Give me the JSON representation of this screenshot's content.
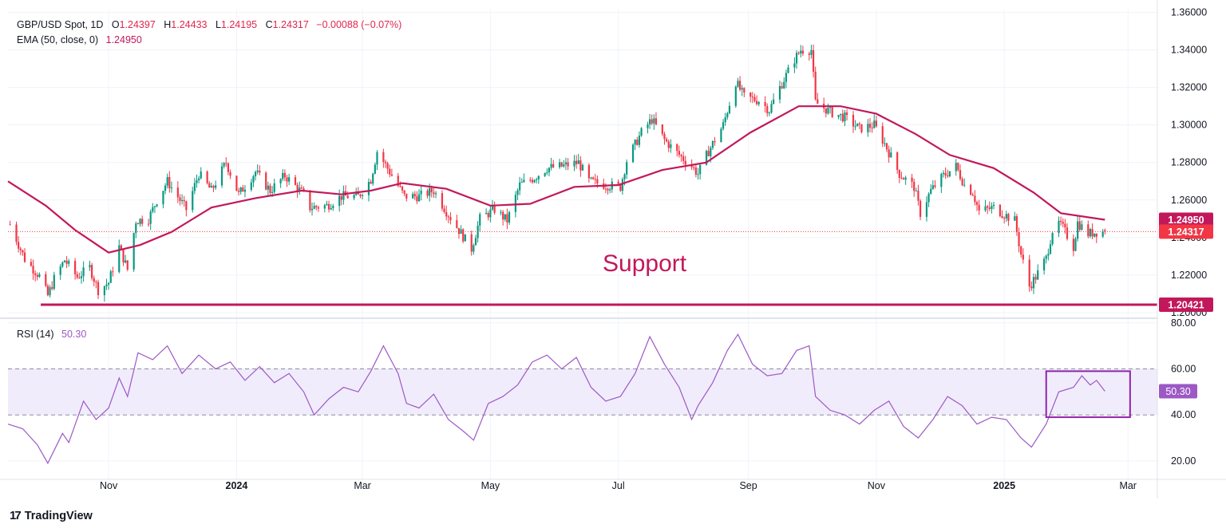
{
  "legend": {
    "symbol": "GBP/USD Spot, 1D",
    "open_label": "O",
    "open": "1.24397",
    "high_label": "H",
    "high": "1.24433",
    "low_label": "L",
    "low": "1.24195",
    "close_label": "C",
    "close": "1.24317",
    "change": "−0.00088 (−0.07%)",
    "ema_label": "EMA (50, close, 0)",
    "ema_value": "1.24950",
    "rsi_label": "RSI (14)",
    "rsi_value": "50.30"
  },
  "annotations": {
    "support_text": "Support"
  },
  "footer": {
    "brand": "TradingView",
    "logo": "17"
  },
  "colors": {
    "up": "#089981",
    "down": "#f23645",
    "ema": "#c2185b",
    "support": "#c2185b",
    "rsi": "#9c59c6",
    "rsi_band": "#f1ecfb",
    "grid": "#f0f3fa"
  },
  "chart_data": [
    {
      "type": "candlestick",
      "title": "GBP/USD Spot, 1D",
      "x_ticks": [
        "Nov",
        "2024",
        "Mar",
        "May",
        "Jul",
        "Sep",
        "Nov",
        "2025",
        "Mar"
      ],
      "y_ticks": [
        "1.20000",
        "1.22000",
        "1.24000",
        "1.26000",
        "1.28000",
        "1.30000",
        "1.32000",
        "1.34000",
        "1.36000"
      ],
      "ylim": [
        1.197,
        1.3615
      ],
      "x_range": [
        "2023-09-14",
        "2025-03-15"
      ],
      "close_path": [
        [
          "2023-09-15",
          1.247
        ],
        [
          "2023-09-22",
          1.2285
        ],
        [
          "2023-09-29",
          1.2195
        ],
        [
          "2023-10-03",
          1.209
        ],
        [
          "2023-10-06",
          1.218
        ],
        [
          "2023-10-11",
          1.228
        ],
        [
          "2023-10-17",
          1.219
        ],
        [
          "2023-10-23",
          1.224
        ],
        [
          "2023-10-27",
          1.212
        ],
        [
          "2023-11-01",
          1.216
        ],
        [
          "2023-11-06",
          1.235
        ],
        [
          "2023-11-10",
          1.223
        ],
        [
          "2023-11-14",
          1.249
        ],
        [
          "2023-11-20",
          1.25
        ],
        [
          "2023-11-24",
          1.26
        ],
        [
          "2023-11-29",
          1.27
        ],
        [
          "2023-12-05",
          1.26
        ],
        [
          "2023-12-08",
          1.255
        ],
        [
          "2023-12-14",
          1.274
        ],
        [
          "2023-12-20",
          1.265
        ],
        [
          "2023-12-27",
          1.28
        ],
        [
          "2024-01-02",
          1.263
        ],
        [
          "2024-01-10",
          1.275
        ],
        [
          "2024-01-17",
          1.265
        ],
        [
          "2024-01-24",
          1.273
        ],
        [
          "2024-02-02",
          1.263
        ],
        [
          "2024-02-05",
          1.256
        ],
        [
          "2024-02-13",
          1.257
        ],
        [
          "2024-02-20",
          1.262
        ],
        [
          "2024-02-28",
          1.262
        ],
        [
          "2024-03-05",
          1.271
        ],
        [
          "2024-03-08",
          1.286
        ],
        [
          "2024-03-14",
          1.275
        ],
        [
          "2024-03-21",
          1.262
        ],
        [
          "2024-03-28",
          1.262
        ],
        [
          "2024-04-04",
          1.265
        ],
        [
          "2024-04-10",
          1.254
        ],
        [
          "2024-04-16",
          1.244
        ],
        [
          "2024-04-22",
          1.234
        ],
        [
          "2024-04-26",
          1.25
        ],
        [
          "2024-05-03",
          1.255
        ],
        [
          "2024-05-09",
          1.249
        ],
        [
          "2024-05-15",
          1.268
        ],
        [
          "2024-05-22",
          1.272
        ],
        [
          "2024-05-28",
          1.277
        ],
        [
          "2024-06-04",
          1.278
        ],
        [
          "2024-06-12",
          1.28
        ],
        [
          "2024-06-17",
          1.27
        ],
        [
          "2024-06-25",
          1.268
        ],
        [
          "2024-07-02",
          1.267
        ],
        [
          "2024-07-05",
          1.281
        ],
        [
          "2024-07-12",
          1.296
        ],
        [
          "2024-07-17",
          1.303
        ],
        [
          "2024-07-23",
          1.292
        ],
        [
          "2024-07-30",
          1.284
        ],
        [
          "2024-08-05",
          1.278
        ],
        [
          "2024-08-08",
          1.274
        ],
        [
          "2024-08-13",
          1.286
        ],
        [
          "2024-08-20",
          1.3
        ],
        [
          "2024-08-26",
          1.323
        ],
        [
          "2024-08-30",
          1.315
        ],
        [
          "2024-09-06",
          1.313
        ],
        [
          "2024-09-11",
          1.308
        ],
        [
          "2024-09-16",
          1.32
        ],
        [
          "2024-09-23",
          1.335
        ],
        [
          "2024-09-26",
          1.34
        ],
        [
          "2024-10-01",
          1.34
        ],
        [
          "2024-10-03",
          1.312
        ],
        [
          "2024-10-10",
          1.307
        ],
        [
          "2024-10-17",
          1.304
        ],
        [
          "2024-10-24",
          1.298
        ],
        [
          "2024-10-31",
          1.3
        ],
        [
          "2024-11-05",
          1.29
        ],
        [
          "2024-11-12",
          1.274
        ],
        [
          "2024-11-19",
          1.267
        ],
        [
          "2024-11-22",
          1.253
        ],
        [
          "2024-11-27",
          1.265
        ],
        [
          "2024-12-03",
          1.273
        ],
        [
          "2024-12-09",
          1.278
        ],
        [
          "2024-12-13",
          1.268
        ],
        [
          "2024-12-17",
          1.264
        ],
        [
          "2024-12-20",
          1.254
        ],
        [
          "2024-12-27",
          1.256
        ],
        [
          "2024-12-31",
          1.253
        ],
        [
          "2025-01-06",
          1.249
        ],
        [
          "2025-01-09",
          1.231
        ],
        [
          "2025-01-13",
          1.214
        ],
        [
          "2025-01-16",
          1.219
        ],
        [
          "2025-01-21",
          1.229
        ],
        [
          "2025-01-24",
          1.244
        ],
        [
          "2025-01-28",
          1.247
        ],
        [
          "2025-02-03",
          1.235
        ],
        [
          "2025-02-05",
          1.248
        ],
        [
          "2025-02-10",
          1.242
        ],
        [
          "2025-02-14",
          1.243
        ],
        [
          "2025-02-18",
          1.2432
        ]
      ],
      "ema_50": [
        [
          "2023-09-14",
          1.27
        ],
        [
          "2023-10-02",
          1.257
        ],
        [
          "2023-10-16",
          1.244
        ],
        [
          "2023-11-01",
          1.232
        ],
        [
          "2023-11-16",
          1.236
        ],
        [
          "2023-12-01",
          1.243
        ],
        [
          "2023-12-20",
          1.256
        ],
        [
          "2024-01-10",
          1.261
        ],
        [
          "2024-02-01",
          1.265
        ],
        [
          "2024-02-20",
          1.263
        ],
        [
          "2024-03-05",
          1.265
        ],
        [
          "2024-03-20",
          1.269
        ],
        [
          "2024-04-10",
          1.266
        ],
        [
          "2024-05-01",
          1.257
        ],
        [
          "2024-05-20",
          1.258
        ],
        [
          "2024-06-10",
          1.267
        ],
        [
          "2024-07-01",
          1.268
        ],
        [
          "2024-07-22",
          1.276
        ],
        [
          "2024-08-12",
          1.28
        ],
        [
          "2024-09-02",
          1.296
        ],
        [
          "2024-09-25",
          1.31
        ],
        [
          "2024-10-15",
          1.31
        ],
        [
          "2024-11-01",
          1.306
        ],
        [
          "2024-11-20",
          1.295
        ],
        [
          "2024-12-06",
          1.284
        ],
        [
          "2024-12-27",
          1.277
        ],
        [
          "2025-01-15",
          1.264
        ],
        [
          "2025-01-28",
          1.253
        ],
        [
          "2025-02-18",
          1.2495
        ]
      ],
      "support_level": 1.20421,
      "price_labels": [
        {
          "name": "EMA 50",
          "value": "1.24950"
        },
        {
          "name": "Close",
          "value": "1.24317"
        },
        {
          "name": "Support",
          "value": "1.20421"
        }
      ],
      "last_close": 1.24317
    },
    {
      "type": "line",
      "title": "RSI (14)",
      "y_ticks": [
        "20.00",
        "40.00",
        "60.00",
        "80.00"
      ],
      "ylim": [
        12,
        82
      ],
      "overbought": 60,
      "oversold": 40,
      "x_range": [
        "2023-09-14",
        "2025-03-15"
      ],
      "series": [
        {
          "name": "RSI (14)",
          "values": [
            [
              "2023-09-14",
              36
            ],
            [
              "2023-09-21",
              34
            ],
            [
              "2023-09-28",
              27
            ],
            [
              "2023-10-03",
              19
            ],
            [
              "2023-10-10",
              32
            ],
            [
              "2023-10-13",
              28
            ],
            [
              "2023-10-20",
              46
            ],
            [
              "2023-10-26",
              38
            ],
            [
              "2023-11-01",
              43
            ],
            [
              "2023-11-06",
              56
            ],
            [
              "2023-11-10",
              48
            ],
            [
              "2023-11-15",
              67
            ],
            [
              "2023-11-22",
              64
            ],
            [
              "2023-11-29",
              70
            ],
            [
              "2023-12-06",
              58
            ],
            [
              "2023-12-14",
              66
            ],
            [
              "2023-12-22",
              60
            ],
            [
              "2023-12-29",
              63
            ],
            [
              "2024-01-05",
              55
            ],
            [
              "2024-01-12",
              61
            ],
            [
              "2024-01-19",
              54
            ],
            [
              "2024-01-26",
              58
            ],
            [
              "2024-02-02",
              50
            ],
            [
              "2024-02-07",
              40
            ],
            [
              "2024-02-14",
              47
            ],
            [
              "2024-02-21",
              52
            ],
            [
              "2024-02-28",
              50
            ],
            [
              "2024-03-05",
              59
            ],
            [
              "2024-03-11",
              70
            ],
            [
              "2024-03-18",
              58
            ],
            [
              "2024-03-22",
              45
            ],
            [
              "2024-03-28",
              43
            ],
            [
              "2024-04-04",
              49
            ],
            [
              "2024-04-11",
              38
            ],
            [
              "2024-04-18",
              33
            ],
            [
              "2024-04-23",
              29
            ],
            [
              "2024-04-30",
              45
            ],
            [
              "2024-05-07",
              48
            ],
            [
              "2024-05-14",
              53
            ],
            [
              "2024-05-21",
              63
            ],
            [
              "2024-05-28",
              66
            ],
            [
              "2024-06-04",
              60
            ],
            [
              "2024-06-11",
              65
            ],
            [
              "2024-06-18",
              52
            ],
            [
              "2024-06-25",
              46
            ],
            [
              "2024-07-02",
              48
            ],
            [
              "2024-07-09",
              58
            ],
            [
              "2024-07-16",
              74
            ],
            [
              "2024-07-23",
              62
            ],
            [
              "2024-07-30",
              52
            ],
            [
              "2024-08-05",
              38
            ],
            [
              "2024-08-08",
              44
            ],
            [
              "2024-08-15",
              54
            ],
            [
              "2024-08-22",
              68
            ],
            [
              "2024-08-27",
              75
            ],
            [
              "2024-09-03",
              62
            ],
            [
              "2024-09-10",
              57
            ],
            [
              "2024-09-17",
              58
            ],
            [
              "2024-09-24",
              68
            ],
            [
              "2024-09-30",
              70
            ],
            [
              "2024-10-03",
              48
            ],
            [
              "2024-10-10",
              42
            ],
            [
              "2024-10-17",
              40
            ],
            [
              "2024-10-24",
              36
            ],
            [
              "2024-10-31",
              42
            ],
            [
              "2024-11-07",
              46
            ],
            [
              "2024-11-14",
              35
            ],
            [
              "2024-11-21",
              30
            ],
            [
              "2024-11-28",
              38
            ],
            [
              "2024-12-05",
              48
            ],
            [
              "2024-12-12",
              44
            ],
            [
              "2024-12-19",
              36
            ],
            [
              "2024-12-26",
              39
            ],
            [
              "2025-01-02",
              38
            ],
            [
              "2025-01-09",
              30
            ],
            [
              "2025-01-14",
              26
            ],
            [
              "2025-01-21",
              36
            ],
            [
              "2025-01-27",
              50
            ],
            [
              "2025-02-03",
              52
            ],
            [
              "2025-02-07",
              57
            ],
            [
              "2025-02-11",
              53
            ],
            [
              "2025-02-14",
              55
            ],
            [
              "2025-02-18",
              50.3
            ]
          ]
        }
      ],
      "highlight_box": {
        "x_from": "2025-01-21",
        "x_to": "2025-03-02",
        "y_from": 39,
        "y_to": 59
      },
      "last_value": "50.30"
    }
  ]
}
